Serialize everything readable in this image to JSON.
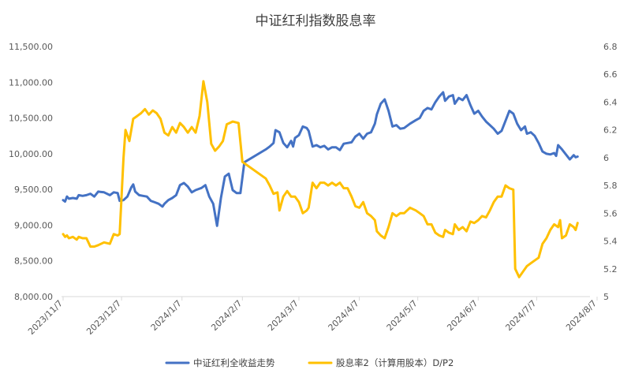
{
  "chart_data": {
    "type": "line",
    "title": "中证红利指数股息率",
    "x_ticks": [
      "2023/11/7",
      "2023/12/7",
      "2024/1/7",
      "2024/2/7",
      "2024/3/7",
      "2024/4/7",
      "2024/5/7",
      "2024/6/7",
      "2024/7/7",
      "2024/8/7"
    ],
    "y_left": {
      "min": 8000,
      "max": 11500,
      "ticks": [
        "8,000.00",
        "8,500.00",
        "9,000.00",
        "9,500.00",
        "10,000.00",
        "10,500.00",
        "11,000.00",
        "11,500.00"
      ]
    },
    "y_right": {
      "min": 5,
      "max": 6.8,
      "ticks": [
        "5",
        "5.2",
        "5.4",
        "5.6",
        "5.8",
        "6",
        "6.2",
        "6.4",
        "6.6",
        "6.8"
      ]
    },
    "legend_position": "bottom",
    "grid": false,
    "series": [
      {
        "name": "中证红利全收益走势",
        "axis": "left",
        "color": "#4472C4",
        "points": [
          [
            "2023-11-07",
            9350
          ],
          [
            "2023-11-08",
            9330
          ],
          [
            "2023-11-09",
            9400
          ],
          [
            "2023-11-10",
            9370
          ],
          [
            "2023-11-12",
            9380
          ],
          [
            "2023-11-14",
            9370
          ],
          [
            "2023-11-15",
            9420
          ],
          [
            "2023-11-17",
            9410
          ],
          [
            "2023-11-19",
            9420
          ],
          [
            "2023-11-21",
            9440
          ],
          [
            "2023-11-23",
            9400
          ],
          [
            "2023-11-25",
            9470
          ],
          [
            "2023-11-28",
            9460
          ],
          [
            "2023-12-01",
            9420
          ],
          [
            "2023-12-03",
            9460
          ],
          [
            "2023-12-05",
            9450
          ],
          [
            "2023-12-06",
            9340
          ],
          [
            "2023-12-08",
            9350
          ],
          [
            "2023-12-10",
            9400
          ],
          [
            "2023-12-12",
            9530
          ],
          [
            "2023-12-13",
            9570
          ],
          [
            "2023-12-14",
            9470
          ],
          [
            "2023-12-16",
            9420
          ],
          [
            "2023-12-18",
            9410
          ],
          [
            "2023-12-20",
            9400
          ],
          [
            "2023-12-22",
            9340
          ],
          [
            "2023-12-24",
            9320
          ],
          [
            "2023-12-26",
            9300
          ],
          [
            "2023-12-28",
            9260
          ],
          [
            "2023-12-29",
            9300
          ],
          [
            "2023-12-31",
            9350
          ],
          [
            "2024-01-02",
            9380
          ],
          [
            "2024-01-04",
            9420
          ],
          [
            "2024-01-06",
            9560
          ],
          [
            "2024-01-08",
            9590
          ],
          [
            "2024-01-10",
            9540
          ],
          [
            "2024-01-12",
            9460
          ],
          [
            "2024-01-14",
            9490
          ],
          [
            "2024-01-17",
            9520
          ],
          [
            "2024-01-19",
            9560
          ],
          [
            "2024-01-21",
            9400
          ],
          [
            "2024-01-23",
            9300
          ],
          [
            "2024-01-25",
            8990
          ],
          [
            "2024-01-27",
            9380
          ],
          [
            "2024-01-29",
            9680
          ],
          [
            "2024-01-31",
            9720
          ],
          [
            "2024-02-02",
            9490
          ],
          [
            "2024-02-04",
            9450
          ],
          [
            "2024-02-06",
            9450
          ],
          [
            "2024-02-08",
            9880
          ],
          [
            "2024-02-19",
            10060
          ],
          [
            "2024-02-21",
            10100
          ],
          [
            "2024-02-23",
            10150
          ],
          [
            "2024-02-24",
            10330
          ],
          [
            "2024-02-26",
            10300
          ],
          [
            "2024-02-28",
            10150
          ],
          [
            "2024-03-01",
            10090
          ],
          [
            "2024-03-03",
            10180
          ],
          [
            "2024-03-04",
            10100
          ],
          [
            "2024-03-05",
            10220
          ],
          [
            "2024-03-07",
            10260
          ],
          [
            "2024-03-09",
            10380
          ],
          [
            "2024-03-11",
            10360
          ],
          [
            "2024-03-12",
            10320
          ],
          [
            "2024-03-14",
            10100
          ],
          [
            "2024-03-16",
            10120
          ],
          [
            "2024-03-18",
            10090
          ],
          [
            "2024-03-20",
            10110
          ],
          [
            "2024-03-22",
            10060
          ],
          [
            "2024-03-24",
            10090
          ],
          [
            "2024-03-26",
            10090
          ],
          [
            "2024-03-28",
            10050
          ],
          [
            "2024-03-30",
            10140
          ],
          [
            "2024-04-01",
            10150
          ],
          [
            "2024-04-03",
            10160
          ],
          [
            "2024-04-05",
            10240
          ],
          [
            "2024-04-07",
            10280
          ],
          [
            "2024-04-09",
            10210
          ],
          [
            "2024-04-11",
            10280
          ],
          [
            "2024-04-13",
            10300
          ],
          [
            "2024-04-15",
            10420
          ],
          [
            "2024-04-16",
            10550
          ],
          [
            "2024-04-18",
            10700
          ],
          [
            "2024-04-20",
            10760
          ],
          [
            "2024-04-22",
            10600
          ],
          [
            "2024-04-24",
            10380
          ],
          [
            "2024-04-26",
            10400
          ],
          [
            "2024-04-28",
            10350
          ],
          [
            "2024-04-30",
            10360
          ],
          [
            "2024-05-03",
            10420
          ],
          [
            "2024-05-06",
            10470
          ],
          [
            "2024-05-08",
            10500
          ],
          [
            "2024-05-10",
            10600
          ],
          [
            "2024-05-12",
            10640
          ],
          [
            "2024-05-14",
            10620
          ],
          [
            "2024-05-16",
            10720
          ],
          [
            "2024-05-18",
            10800
          ],
          [
            "2024-05-20",
            10860
          ],
          [
            "2024-05-21",
            10740
          ],
          [
            "2024-05-23",
            10800
          ],
          [
            "2024-05-25",
            10820
          ],
          [
            "2024-05-26",
            10700
          ],
          [
            "2024-05-28",
            10780
          ],
          [
            "2024-05-30",
            10750
          ],
          [
            "2024-06-01",
            10820
          ],
          [
            "2024-06-03",
            10680
          ],
          [
            "2024-06-05",
            10560
          ],
          [
            "2024-06-07",
            10600
          ],
          [
            "2024-06-09",
            10520
          ],
          [
            "2024-06-11",
            10450
          ],
          [
            "2024-06-13",
            10400
          ],
          [
            "2024-06-15",
            10350
          ],
          [
            "2024-06-17",
            10280
          ],
          [
            "2024-06-19",
            10320
          ],
          [
            "2024-06-21",
            10460
          ],
          [
            "2024-06-23",
            10600
          ],
          [
            "2024-06-25",
            10560
          ],
          [
            "2024-06-27",
            10420
          ],
          [
            "2024-06-29",
            10330
          ],
          [
            "2024-07-01",
            10380
          ],
          [
            "2024-07-02",
            10280
          ],
          [
            "2024-07-04",
            10300
          ],
          [
            "2024-07-06",
            10250
          ],
          [
            "2024-07-08",
            10150
          ],
          [
            "2024-07-10",
            10030
          ],
          [
            "2024-07-12",
            10000
          ],
          [
            "2024-07-14",
            9990
          ],
          [
            "2024-07-16",
            10010
          ],
          [
            "2024-07-17",
            9970
          ],
          [
            "2024-07-18",
            10120
          ],
          [
            "2024-07-20",
            10060
          ],
          [
            "2024-07-22",
            9990
          ],
          [
            "2024-07-24",
            9920
          ],
          [
            "2024-07-26",
            9980
          ],
          [
            "2024-07-27",
            9950
          ],
          [
            "2024-07-28",
            9960
          ]
        ]
      },
      {
        "name": "股息率2（计算用股本）D/P2",
        "axis": "right",
        "color": "#FFC000",
        "points": [
          [
            "2023-11-07",
            5.45
          ],
          [
            "2023-11-08",
            5.43
          ],
          [
            "2023-11-09",
            5.44
          ],
          [
            "2023-11-10",
            5.42
          ],
          [
            "2023-11-12",
            5.43
          ],
          [
            "2023-11-14",
            5.41
          ],
          [
            "2023-11-15",
            5.43
          ],
          [
            "2023-11-17",
            5.42
          ],
          [
            "2023-11-19",
            5.42
          ],
          [
            "2023-11-21",
            5.36
          ],
          [
            "2023-11-23",
            5.36
          ],
          [
            "2023-11-25",
            5.37
          ],
          [
            "2023-11-28",
            5.39
          ],
          [
            "2023-12-01",
            5.38
          ],
          [
            "2023-12-03",
            5.45
          ],
          [
            "2023-12-05",
            5.44
          ],
          [
            "2023-12-06",
            5.45
          ],
          [
            "2023-12-08",
            6.0
          ],
          [
            "2023-12-09",
            6.2
          ],
          [
            "2023-12-11",
            6.12
          ],
          [
            "2023-12-13",
            6.28
          ],
          [
            "2023-12-15",
            6.3
          ],
          [
            "2023-12-17",
            6.32
          ],
          [
            "2023-12-19",
            6.35
          ],
          [
            "2023-12-21",
            6.31
          ],
          [
            "2023-12-23",
            6.34
          ],
          [
            "2023-12-25",
            6.32
          ],
          [
            "2023-12-27",
            6.28
          ],
          [
            "2023-12-29",
            6.18
          ],
          [
            "2023-12-31",
            6.16
          ],
          [
            "2024-01-02",
            6.22
          ],
          [
            "2024-01-04",
            6.18
          ],
          [
            "2024-01-06",
            6.25
          ],
          [
            "2024-01-08",
            6.22
          ],
          [
            "2024-01-10",
            6.18
          ],
          [
            "2024-01-12",
            6.22
          ],
          [
            "2024-01-14",
            6.18
          ],
          [
            "2024-01-16",
            6.3
          ],
          [
            "2024-01-18",
            6.55
          ],
          [
            "2024-01-20",
            6.4
          ],
          [
            "2024-01-22",
            6.1
          ],
          [
            "2024-01-24",
            6.05
          ],
          [
            "2024-01-26",
            6.08
          ],
          [
            "2024-01-28",
            6.12
          ],
          [
            "2024-01-30",
            6.24
          ],
          [
            "2024-02-02",
            6.26
          ],
          [
            "2024-02-05",
            6.25
          ],
          [
            "2024-02-07",
            5.97
          ],
          [
            "2024-02-19",
            5.85
          ],
          [
            "2024-02-21",
            5.8
          ],
          [
            "2024-02-23",
            5.74
          ],
          [
            "2024-02-25",
            5.75
          ],
          [
            "2024-02-26",
            5.62
          ],
          [
            "2024-02-28",
            5.72
          ],
          [
            "2024-03-01",
            5.76
          ],
          [
            "2024-03-03",
            5.72
          ],
          [
            "2024-03-05",
            5.72
          ],
          [
            "2024-03-07",
            5.68
          ],
          [
            "2024-03-09",
            5.6
          ],
          [
            "2024-03-11",
            5.62
          ],
          [
            "2024-03-12",
            5.64
          ],
          [
            "2024-03-14",
            5.82
          ],
          [
            "2024-03-16",
            5.78
          ],
          [
            "2024-03-18",
            5.82
          ],
          [
            "2024-03-20",
            5.82
          ],
          [
            "2024-03-22",
            5.8
          ],
          [
            "2024-03-24",
            5.82
          ],
          [
            "2024-03-26",
            5.8
          ],
          [
            "2024-03-28",
            5.82
          ],
          [
            "2024-03-30",
            5.78
          ],
          [
            "2024-04-01",
            5.78
          ],
          [
            "2024-04-03",
            5.72
          ],
          [
            "2024-04-05",
            5.65
          ],
          [
            "2024-04-07",
            5.64
          ],
          [
            "2024-04-09",
            5.68
          ],
          [
            "2024-04-11",
            5.6
          ],
          [
            "2024-04-13",
            5.58
          ],
          [
            "2024-04-15",
            5.55
          ],
          [
            "2024-04-16",
            5.47
          ],
          [
            "2024-04-18",
            5.44
          ],
          [
            "2024-04-20",
            5.42
          ],
          [
            "2024-04-22",
            5.5
          ],
          [
            "2024-04-24",
            5.6
          ],
          [
            "2024-04-26",
            5.58
          ],
          [
            "2024-04-28",
            5.6
          ],
          [
            "2024-04-30",
            5.6
          ],
          [
            "2024-05-03",
            5.64
          ],
          [
            "2024-05-06",
            5.62
          ],
          [
            "2024-05-08",
            5.6
          ],
          [
            "2024-05-10",
            5.58
          ],
          [
            "2024-05-12",
            5.52
          ],
          [
            "2024-05-14",
            5.52
          ],
          [
            "2024-05-16",
            5.46
          ],
          [
            "2024-05-18",
            5.44
          ],
          [
            "2024-05-20",
            5.43
          ],
          [
            "2024-05-21",
            5.48
          ],
          [
            "2024-05-23",
            5.46
          ],
          [
            "2024-05-25",
            5.45
          ],
          [
            "2024-05-26",
            5.52
          ],
          [
            "2024-05-28",
            5.48
          ],
          [
            "2024-05-30",
            5.5
          ],
          [
            "2024-06-01",
            5.47
          ],
          [
            "2024-06-03",
            5.54
          ],
          [
            "2024-06-05",
            5.53
          ],
          [
            "2024-06-07",
            5.55
          ],
          [
            "2024-06-09",
            5.58
          ],
          [
            "2024-06-11",
            5.57
          ],
          [
            "2024-06-13",
            5.62
          ],
          [
            "2024-06-15",
            5.68
          ],
          [
            "2024-06-17",
            5.72
          ],
          [
            "2024-06-19",
            5.72
          ],
          [
            "2024-06-21",
            5.8
          ],
          [
            "2024-06-23",
            5.78
          ],
          [
            "2024-06-25",
            5.77
          ],
          [
            "2024-06-26",
            5.2
          ],
          [
            "2024-06-28",
            5.14
          ],
          [
            "2024-06-30",
            5.18
          ],
          [
            "2024-07-02",
            5.22
          ],
          [
            "2024-07-04",
            5.24
          ],
          [
            "2024-07-06",
            5.26
          ],
          [
            "2024-07-08",
            5.28
          ],
          [
            "2024-07-10",
            5.38
          ],
          [
            "2024-07-12",
            5.42
          ],
          [
            "2024-07-14",
            5.48
          ],
          [
            "2024-07-16",
            5.52
          ],
          [
            "2024-07-18",
            5.5
          ],
          [
            "2024-07-19",
            5.55
          ],
          [
            "2024-07-20",
            5.42
          ],
          [
            "2024-07-22",
            5.44
          ],
          [
            "2024-07-24",
            5.52
          ],
          [
            "2024-07-26",
            5.5
          ],
          [
            "2024-07-27",
            5.48
          ],
          [
            "2024-07-28",
            5.53
          ]
        ]
      }
    ]
  }
}
